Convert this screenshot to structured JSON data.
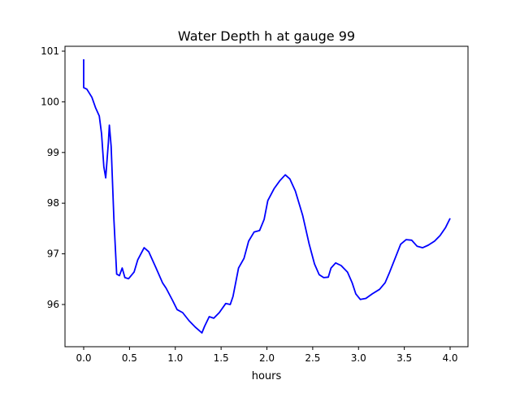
{
  "chart_data": {
    "type": "line",
    "title": "Water Depth h at gauge 99",
    "xlabel": "hours",
    "ylabel": "",
    "xlim": [
      -0.204,
      4.195
    ],
    "ylim": [
      95.167,
      101.096
    ],
    "xticks": [
      0.0,
      0.5,
      1.0,
      1.5,
      2.0,
      2.5,
      3.0,
      3.5,
      4.0
    ],
    "xtick_labels": [
      "0.0",
      "0.5",
      "1.0",
      "1.5",
      "2.0",
      "2.5",
      "3.0",
      "3.5",
      "4.0"
    ],
    "yticks": [
      96,
      97,
      98,
      99,
      100,
      101
    ],
    "ytick_labels": [
      "96",
      "97",
      "98",
      "99",
      "100",
      "101"
    ],
    "grid": false,
    "series": [
      {
        "name": "h",
        "color": "#0000ff",
        "x": [
          0,
          0,
          0.035,
          0.09,
          0.13,
          0.17,
          0.195,
          0.22,
          0.24,
          0.27,
          0.28,
          0.3,
          0.33,
          0.36,
          0.39,
          0.42,
          0.45,
          0.49,
          0.55,
          0.59,
          0.66,
          0.71,
          0.79,
          0.86,
          0.9,
          0.97,
          1.02,
          1.08,
          1.15,
          1.22,
          1.29,
          1.32,
          1.37,
          1.42,
          1.48,
          1.55,
          1.6,
          1.63,
          1.69,
          1.75,
          1.8,
          1.86,
          1.92,
          1.97,
          2.01,
          2.08,
          2.14,
          2.2,
          2.25,
          2.31,
          2.39,
          2.46,
          2.52,
          2.57,
          2.62,
          2.67,
          2.7,
          2.75,
          2.81,
          2.88,
          2.93,
          2.97,
          3.02,
          3.08,
          3.15,
          3.23,
          3.29,
          3.34,
          3.41,
          3.46,
          3.52,
          3.58,
          3.64,
          3.7,
          3.76,
          3.83,
          3.89,
          3.95,
          4.0
        ],
        "y": [
          100.84,
          100.28,
          100.25,
          100.09,
          99.88,
          99.72,
          99.37,
          98.72,
          98.5,
          99.2,
          99.54,
          99.12,
          97.68,
          96.6,
          96.57,
          96.72,
          96.53,
          96.51,
          96.64,
          96.88,
          97.12,
          97.04,
          96.72,
          96.43,
          96.32,
          96.08,
          95.9,
          95.84,
          95.68,
          95.55,
          95.44,
          95.57,
          95.76,
          95.73,
          95.84,
          96.02,
          96.0,
          96.16,
          96.72,
          96.91,
          97.25,
          97.43,
          97.46,
          97.68,
          98.05,
          98.29,
          98.44,
          98.56,
          98.48,
          98.24,
          97.76,
          97.2,
          96.8,
          96.59,
          96.53,
          96.54,
          96.72,
          96.82,
          96.77,
          96.64,
          96.43,
          96.21,
          96.1,
          96.12,
          96.21,
          96.3,
          96.43,
          96.64,
          96.96,
          97.19,
          97.28,
          97.27,
          97.15,
          97.12,
          97.17,
          97.25,
          97.36,
          97.52,
          97.7
        ]
      }
    ]
  }
}
